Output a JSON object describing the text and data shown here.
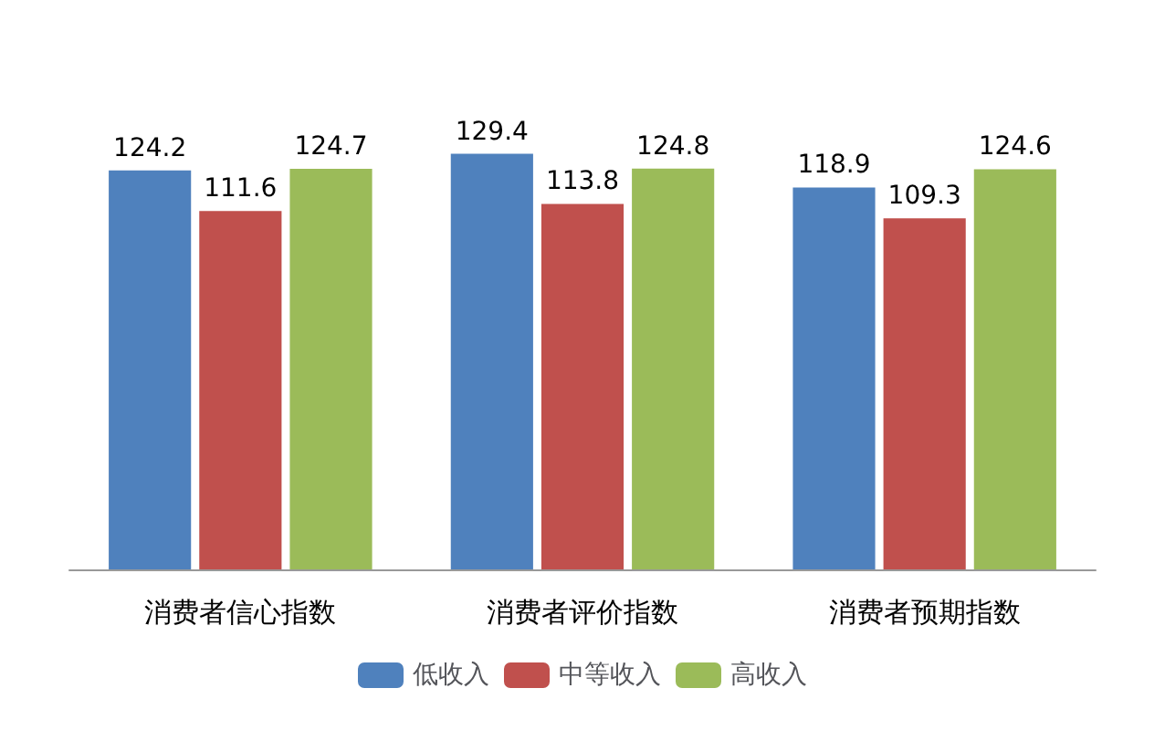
{
  "chart_data": {
    "type": "bar",
    "categories": [
      "消费者信心指数",
      "消费者评价指数",
      "消费者预期指数"
    ],
    "series": [
      {
        "name": "低收入",
        "color": "#4f81bd",
        "values": [
          124.2,
          129.4,
          118.9
        ]
      },
      {
        "name": "中等收入",
        "color": "#c0504d",
        "values": [
          111.6,
          113.8,
          109.3
        ]
      },
      {
        "name": "高收入",
        "color": "#9bbb59",
        "values": [
          124.7,
          124.8,
          124.6
        ]
      }
    ],
    "data_labels": true,
    "legend": "bottom"
  }
}
